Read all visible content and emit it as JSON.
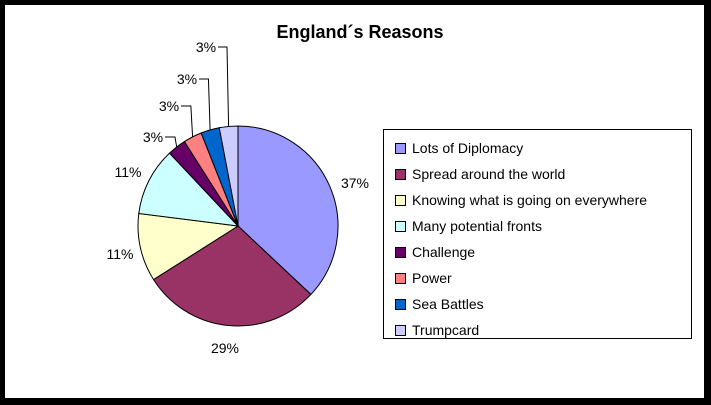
{
  "chart_data": {
    "type": "pie",
    "title": "England´s Reasons",
    "legend_position": "right",
    "slices": [
      {
        "label": "Lots of Diplomacy",
        "value": 37,
        "display": "37%",
        "color": "#9999ff"
      },
      {
        "label": "Spread around the world",
        "value": 29,
        "display": "29%",
        "color": "#993366"
      },
      {
        "label": "Knowing what is going on everywhere",
        "value": 11,
        "display": "11%",
        "color": "#ffffcc"
      },
      {
        "label": "Many potential fronts",
        "value": 11,
        "display": "11%",
        "color": "#ccffff"
      },
      {
        "label": "Challenge",
        "value": 3,
        "display": "3%",
        "color": "#660066"
      },
      {
        "label": "Power",
        "value": 3,
        "display": "3%",
        "color": "#ff8080"
      },
      {
        "label": "Sea Battles",
        "value": 3,
        "display": "3%",
        "color": "#0066cc"
      },
      {
        "label": "Trumpcard",
        "value": 3,
        "display": "3%",
        "color": "#ccccff"
      }
    ]
  }
}
